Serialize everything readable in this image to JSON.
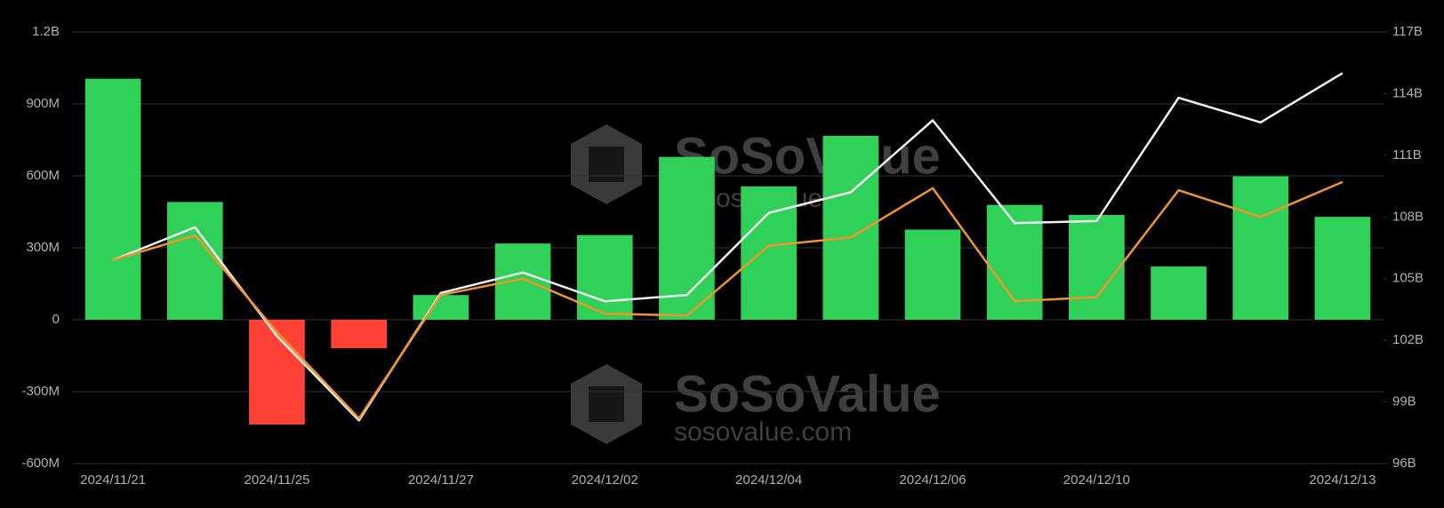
{
  "chart_data": {
    "type": "bar",
    "categories": [
      "2024/11/21",
      null,
      "2024/11/25",
      null,
      "2024/11/27",
      null,
      "2024/12/02",
      null,
      "2024/12/04",
      null,
      "2024/12/06",
      null,
      "2024/12/10",
      null,
      null,
      "2024/12/13"
    ],
    "series": [
      {
        "type": "bar",
        "color": "#30d158",
        "negative_color": "#ff4136",
        "values": [
          1005,
          491,
          -437,
          -119,
          103,
          318,
          353,
          679,
          556,
          767,
          376,
          479,
          437,
          222,
          598,
          429
        ]
      },
      {
        "type": "line",
        "axis": "y2",
        "color": "#f0f0f0",
        "values": [
          105.9,
          107.5,
          102.2,
          98.1,
          104.3,
          105.3,
          103.9,
          104.2,
          108.2,
          109.2,
          112.7,
          107.7,
          107.8,
          113.8,
          112.6,
          115.0
        ]
      },
      {
        "type": "line",
        "axis": "y2",
        "color": "#f0952b",
        "values": [
          105.9,
          107.1,
          102.4,
          98.2,
          104.2,
          105.0,
          103.3,
          103.2,
          106.6,
          107.0,
          109.4,
          103.9,
          104.1,
          109.3,
          108.0,
          109.7
        ]
      }
    ],
    "ylim": [
      -600,
      1200
    ],
    "yticks": [
      {
        "value": -600,
        "label": "-600M"
      },
      {
        "value": -300,
        "label": "-300M"
      },
      0,
      {
        "value": 300,
        "label": "300M"
      },
      {
        "value": 600,
        "label": "600M"
      },
      {
        "value": 900,
        "label": "900M"
      },
      {
        "value": 1200,
        "label": "1.2B"
      }
    ],
    "y2lim": [
      96,
      117
    ],
    "y2ticks": [
      {
        "value": 96,
        "label": "96B"
      },
      {
        "value": 99,
        "label": "99B"
      },
      {
        "value": 102,
        "label": "102B"
      },
      {
        "value": 105,
        "label": "105B"
      },
      {
        "value": 108,
        "label": "108B"
      },
      {
        "value": 111,
        "label": "111B"
      },
      {
        "value": 114,
        "label": "114B"
      },
      {
        "value": 117,
        "label": "117B"
      }
    ],
    "grid": true,
    "watermark": {
      "brand": "SoSoValue",
      "url": "sosovalue.com"
    }
  }
}
